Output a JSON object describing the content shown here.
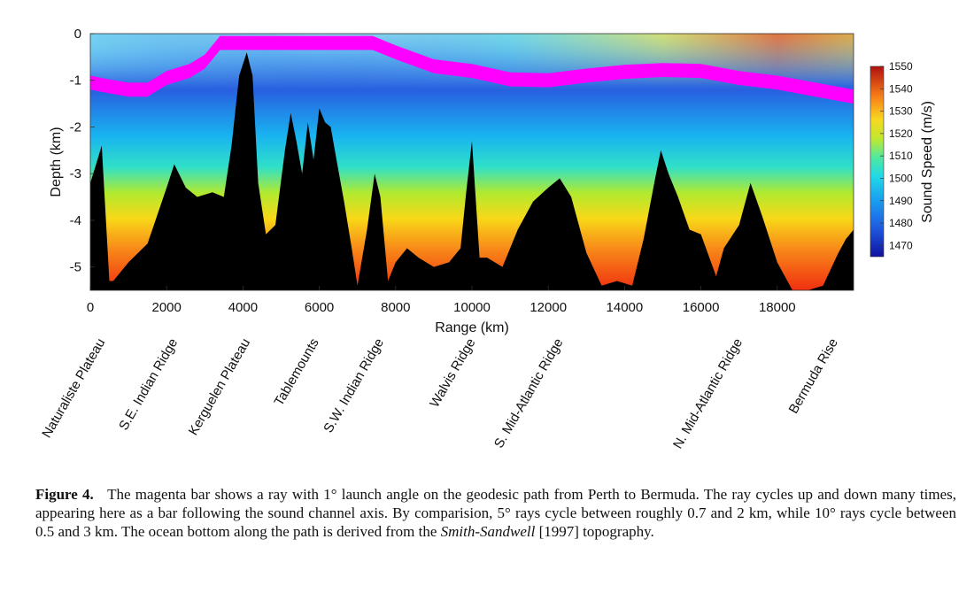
{
  "chart_data": {
    "type": "heatmap",
    "xlabel": "Range (km)",
    "ylabel": "Depth (km)",
    "xlim": [
      0,
      20000
    ],
    "ylim": [
      -5.5,
      0
    ],
    "x_ticks": [
      "0",
      "2000",
      "4000",
      "6000",
      "8000",
      "10000",
      "12000",
      "14000",
      "16000",
      "18000"
    ],
    "y_ticks": [
      "0",
      "-1",
      "-2",
      "-3",
      "-4",
      "-5"
    ],
    "colorbar": {
      "label": "Sound Speed (m/s)",
      "range": [
        1465,
        1550
      ],
      "ticks": [
        "1470",
        "1480",
        "1490",
        "1500",
        "1510",
        "1520",
        "1530",
        "1540",
        "1550"
      ]
    },
    "features": [
      {
        "name": "Naturaliste Plateau",
        "range_km": 300
      },
      {
        "name": "S.E. Indian Ridge",
        "range_km": 2200
      },
      {
        "name": "Kerguelen Plateau",
        "range_km": 4100
      },
      {
        "name": "Tablemounts",
        "range_km": 5900
      },
      {
        "name": "S.W. Indian Ridge",
        "range_km": 7600
      },
      {
        "name": "Walvis Ridge",
        "range_km": 10000
      },
      {
        "name": "S. Mid-Atlantic Ridge",
        "range_km": 12300
      },
      {
        "name": "N. Mid-Atlantic Ridge",
        "range_km": 17000
      },
      {
        "name": "Bermuda Rise",
        "range_km": 19500
      }
    ],
    "bathymetry": {
      "range_km": [
        0,
        150,
        300,
        500,
        600,
        1000,
        1500,
        2000,
        2200,
        2500,
        2800,
        3200,
        3500,
        3700,
        3900,
        4100,
        4250,
        4400,
        4600,
        4850,
        5100,
        5250,
        5400,
        5550,
        5700,
        5850,
        6000,
        6150,
        6300,
        6450,
        6650,
        6850,
        7000,
        7250,
        7450,
        7600,
        7800,
        8000,
        8300,
        8600,
        9000,
        9400,
        9700,
        9850,
        10000,
        10200,
        10400,
        10800,
        11200,
        11600,
        12000,
        12300,
        12600,
        13000,
        13400,
        13800,
        14200,
        14500,
        14800,
        14950,
        15150,
        15400,
        15700,
        16000,
        16400,
        16600,
        17000,
        17300,
        17600,
        18000,
        18400,
        18800,
        19200,
        19600,
        19800,
        20000
      ],
      "depth_km": [
        -3.2,
        -2.8,
        -2.4,
        -5.3,
        -5.3,
        -4.9,
        -4.5,
        -3.3,
        -2.8,
        -3.3,
        -3.5,
        -3.4,
        -3.5,
        -2.4,
        -0.9,
        -0.4,
        -0.9,
        -3.2,
        -4.3,
        -4.1,
        -2.5,
        -1.7,
        -2.3,
        -3.0,
        -1.9,
        -2.7,
        -1.6,
        -1.9,
        -2.0,
        -2.7,
        -3.6,
        -4.6,
        -5.4,
        -4.2,
        -3.0,
        -3.5,
        -5.3,
        -4.9,
        -4.6,
        -4.8,
        -5.0,
        -4.9,
        -4.6,
        -3.4,
        -2.3,
        -4.8,
        -4.8,
        -5.0,
        -4.2,
        -3.6,
        -3.3,
        -3.1,
        -3.5,
        -4.7,
        -5.4,
        -5.3,
        -5.4,
        -4.4,
        -3.1,
        -2.5,
        -3.0,
        -3.5,
        -4.2,
        -4.3,
        -5.2,
        -4.6,
        -4.1,
        -3.2,
        -3.9,
        -4.9,
        -5.5,
        -5.5,
        -5.4,
        -4.7,
        -4.4,
        -4.2
      ]
    },
    "ray_axis": {
      "range_km": [
        0,
        500,
        1000,
        1500,
        2000,
        2600,
        3000,
        3200,
        3400,
        4000,
        5000,
        6000,
        7000,
        7400,
        8000,
        9000,
        10000,
        11000,
        12000,
        13000,
        14000,
        15000,
        16000,
        17000,
        18000,
        19000,
        20000
      ],
      "depth_km": [
        -1.05,
        -1.13,
        -1.2,
        -1.2,
        -0.95,
        -0.8,
        -0.6,
        -0.4,
        -0.2,
        -0.2,
        -0.2,
        -0.2,
        -0.2,
        -0.2,
        -0.4,
        -0.7,
        -0.8,
        -0.98,
        -1.0,
        -0.9,
        -0.82,
        -0.78,
        -0.8,
        -0.95,
        -1.05,
        -1.2,
        -1.35
      ],
      "thickness_km": 0.3
    }
  },
  "caption": {
    "label": "Figure 4.",
    "text_before_italic": "The magenta bar shows a ray with 1° launch angle on the geodesic path from Perth to Bermuda. The ray cycles up and down many times, appearing here as a bar following the sound channel axis. By comparision, 5° rays cycle between roughly 0.7 and 2 km, while 10° rays cycle between 0.5 and 3 km. The ocean bottom along the path is derived from the",
    "italic": "Smith-Sandwell",
    "text_after_italic": "[1997] topography."
  },
  "colors": {
    "ray": "#ff00ff",
    "bottom": "#000000",
    "speed_scale": [
      "#1a1a8c",
      "#1e4fd8",
      "#1c8cf0",
      "#18c8e8",
      "#40e0b0",
      "#a8e838",
      "#f0e020",
      "#f8a018",
      "#f06018",
      "#c01818"
    ]
  }
}
